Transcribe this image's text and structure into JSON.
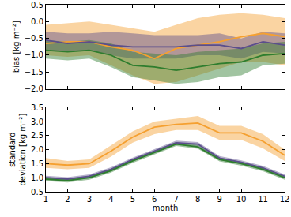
{
  "chart_data": [
    {
      "type": "line",
      "ylabel": "bias [kg m⁻²]",
      "tick_labels": "y",
      "grid": false,
      "x": [
        1,
        2,
        3,
        4,
        5,
        6,
        7,
        8,
        9,
        10,
        11,
        12
      ],
      "xlim": [
        1,
        12
      ],
      "xticks": [
        1,
        2,
        3,
        4,
        5,
        6,
        7,
        8,
        9,
        10,
        11,
        12
      ],
      "ylim": [
        -2.0,
        0.5
      ],
      "yticks": [
        {
          "value": -2.0,
          "label": "−2.0"
        },
        {
          "value": -1.5,
          "label": "−1.5"
        },
        {
          "value": -1.0,
          "label": "−1.0"
        },
        {
          "value": -0.5,
          "label": "−0.5"
        },
        {
          "value": 0.0,
          "label": "0.0"
        },
        0.5
      ],
      "series": [
        {
          "color": "#f5a030",
          "values": [
            -0.65,
            -0.6,
            -0.6,
            -0.75,
            -0.85,
            -1.1,
            -0.8,
            -0.7,
            -0.6,
            -0.45,
            -0.35,
            -0.45
          ],
          "lower": [
            -1.0,
            -1.05,
            -1.0,
            -1.3,
            -1.6,
            -1.85,
            -1.8,
            -1.6,
            -1.4,
            -1.2,
            -1.2,
            -1.3
          ],
          "upper": [
            -0.1,
            -0.05,
            0.0,
            -0.1,
            -0.2,
            -0.3,
            -0.1,
            0.1,
            0.2,
            0.25,
            0.2,
            0.1
          ]
        },
        {
          "color": "#5b4e8c",
          "values": [
            -0.55,
            -0.65,
            -0.6,
            -0.7,
            -0.75,
            -0.75,
            -0.75,
            -0.7,
            -0.7,
            -0.8,
            -0.6,
            -0.7
          ],
          "lower": [
            -0.85,
            -0.9,
            -0.85,
            -1.0,
            -1.1,
            -1.1,
            -1.1,
            -1.0,
            -1.0,
            -1.1,
            -0.9,
            -0.95
          ],
          "upper": [
            -0.3,
            -0.35,
            -0.35,
            -0.3,
            -0.35,
            -0.4,
            -0.4,
            -0.4,
            -0.35,
            -0.5,
            -0.3,
            -0.35
          ]
        },
        {
          "color": "#2e7d2e",
          "values": [
            -0.85,
            -0.9,
            -0.85,
            -1.0,
            -1.3,
            -1.35,
            -1.45,
            -1.35,
            -1.25,
            -1.2,
            -1.0,
            -0.95
          ],
          "lower": [
            -1.1,
            -1.15,
            -1.1,
            -1.35,
            -1.65,
            -1.75,
            -1.85,
            -1.8,
            -1.65,
            -1.6,
            -1.3,
            -1.25
          ],
          "upper": [
            -0.55,
            -0.6,
            -0.55,
            -0.65,
            -0.9,
            -0.95,
            -1.0,
            -0.9,
            -0.85,
            -0.8,
            -0.65,
            -0.6
          ]
        }
      ]
    },
    {
      "type": "line",
      "xlabel": "month",
      "ylabel": "standard\ndeviation [kg m⁻²]",
      "grid": false,
      "x": [
        1,
        2,
        3,
        4,
        5,
        6,
        7,
        8,
        9,
        10,
        11,
        12
      ],
      "xlim": [
        1,
        12
      ],
      "xticks": [
        1,
        2,
        3,
        4,
        5,
        6,
        7,
        8,
        9,
        10,
        11,
        12
      ],
      "ylim": [
        0.5,
        3.5
      ],
      "yticks": [
        0.5,
        {
          "value": 1.0,
          "label": "1.0"
        },
        1.5,
        {
          "value": 2.0,
          "label": "2.0"
        },
        2.5,
        {
          "value": 3.0,
          "label": "3.0"
        },
        3.5
      ],
      "series": [
        {
          "color": "#f5a030",
          "values": [
            1.5,
            1.45,
            1.5,
            1.95,
            2.45,
            2.8,
            2.9,
            2.95,
            2.6,
            2.6,
            2.3,
            1.8
          ],
          "lower": [
            1.35,
            1.3,
            1.35,
            1.75,
            2.25,
            2.55,
            2.7,
            2.7,
            2.35,
            2.35,
            2.05,
            1.6
          ],
          "upper": [
            1.7,
            1.6,
            1.65,
            2.15,
            2.65,
            3.0,
            3.1,
            3.2,
            2.85,
            2.85,
            2.55,
            2.0
          ]
        },
        {
          "color": "#5b4e8c",
          "values": [
            1.0,
            0.95,
            1.05,
            1.3,
            1.65,
            1.95,
            2.25,
            2.2,
            1.7,
            1.55,
            1.35,
            1.05
          ],
          "lower": [
            0.93,
            0.88,
            0.98,
            1.23,
            1.58,
            1.88,
            2.18,
            2.13,
            1.63,
            1.48,
            1.28,
            0.98
          ],
          "upper": [
            1.07,
            1.02,
            1.12,
            1.37,
            1.72,
            2.02,
            2.32,
            2.27,
            1.77,
            1.62,
            1.42,
            1.12
          ]
        },
        {
          "color": "#2e7d2e",
          "values": [
            0.95,
            0.9,
            1.0,
            1.25,
            1.6,
            1.9,
            2.2,
            2.1,
            1.65,
            1.5,
            1.3,
            1.0
          ],
          "lower": [
            0.88,
            0.83,
            0.93,
            1.18,
            1.53,
            1.83,
            2.13,
            2.03,
            1.58,
            1.43,
            1.23,
            0.93
          ],
          "upper": [
            1.02,
            0.97,
            1.07,
            1.32,
            1.67,
            1.97,
            2.27,
            2.17,
            1.72,
            1.57,
            1.37,
            1.07
          ]
        }
      ]
    }
  ]
}
